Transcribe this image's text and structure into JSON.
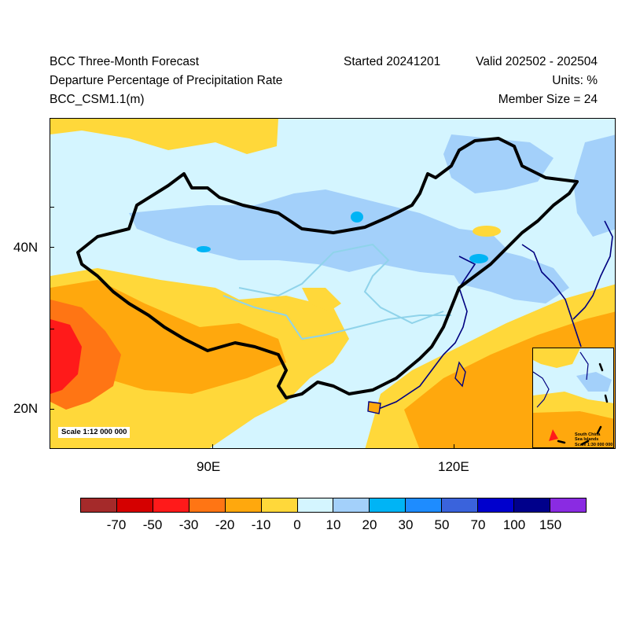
{
  "header": {
    "title": "BCC Three-Month Forecast",
    "variable": "Departure Percentage of Precipitation Rate",
    "model": "BCC_CSM1.1(m)",
    "started": "Started 20241201",
    "valid": "Valid 202502 - 202504",
    "units": "Units: %",
    "members": "Member Size = 24"
  },
  "map": {
    "lat_labels": [
      "40N",
      "20N"
    ],
    "lon_labels": [
      "90E",
      "120E"
    ],
    "scale_note": "Scale 1:12 000 000",
    "inset_label": "South China\nSea Islands\nScale 1:30 000 000"
  },
  "colors": {
    "m_gt70": "#a52a2a",
    "m70_50": "#d50000",
    "m50_30": "#ff1a1a",
    "m30_20": "#ff7514",
    "m20_10": "#ffa80d",
    "m10_0": "#ffd83a",
    "p0_10": "#d4f5ff",
    "p10_20": "#a3d0fa",
    "p20_30": "#00b4f5",
    "p30_50": "#1e8cff",
    "p50_70": "#3a63dc",
    "p70_100": "#0000cd",
    "p100_150": "#00008b",
    "p_gt150": "#8a2be2"
  },
  "legend": {
    "boxes": [
      "#a52a2a",
      "#d50000",
      "#ff1a1a",
      "#ff7514",
      "#ffa80d",
      "#ffd83a",
      "#d4f5ff",
      "#a3d0fa",
      "#00b4f5",
      "#1e8cff",
      "#3a63dc",
      "#0000cd",
      "#00008b",
      "#8a2be2"
    ],
    "labels": [
      "-70",
      "-50",
      "-30",
      "-20",
      "-10",
      "0",
      "10",
      "20",
      "30",
      "50",
      "70",
      "100",
      "150"
    ]
  }
}
